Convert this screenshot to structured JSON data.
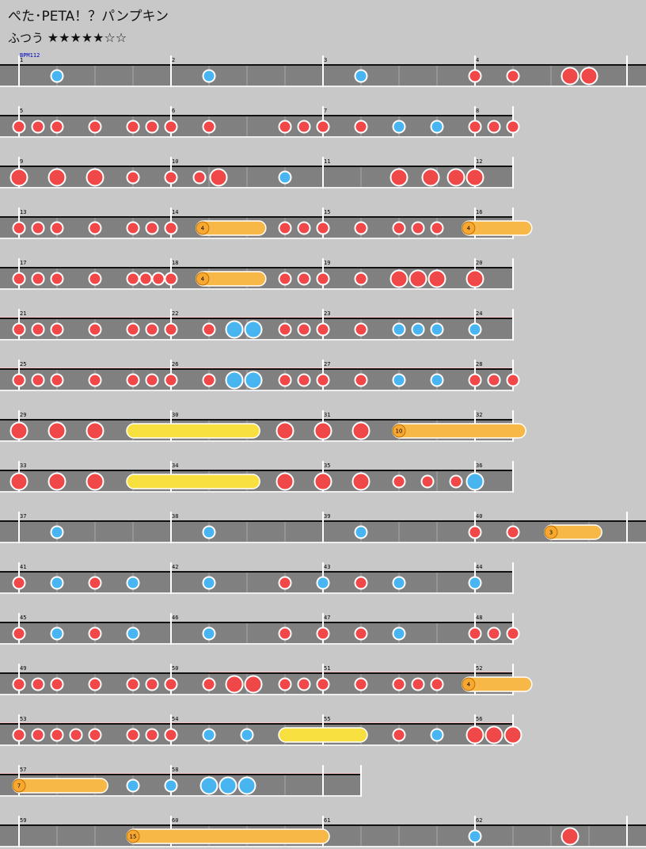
{
  "song": {
    "title": "ぺた･PETA！？パンプキン",
    "difficulty": "ふつう",
    "stars": "★★★★★☆☆"
  },
  "chart_data": {
    "type": "table",
    "bpm_label": "BPM112",
    "colors": {
      "don": "#f04848",
      "ka": "#48b4f0",
      "roll": "#f8b848",
      "balloon": "#f8e040",
      "gogo": "#ffc8c8",
      "lane": "#808080"
    },
    "rows": [
      {
        "measures": [
          1,
          2,
          3,
          4
        ],
        "width": 4,
        "gogo": [],
        "notes": [
          {
            "t": "k",
            "p": 1
          },
          {
            "t": "k",
            "p": 5
          },
          {
            "t": "k",
            "p": 9
          },
          {
            "t": "d",
            "p": 12
          },
          {
            "t": "d",
            "p": 13
          },
          {
            "t": "D",
            "p": 14.5
          },
          {
            "t": "D",
            "p": 15
          }
        ]
      },
      {
        "measures": [
          5,
          6,
          7,
          8
        ],
        "width": 3,
        "gogo": [],
        "notes": [
          {
            "t": "d",
            "p": 0
          },
          {
            "t": "d",
            "p": 0.5
          },
          {
            "t": "d",
            "p": 1
          },
          {
            "t": "d",
            "p": 2
          },
          {
            "t": "d",
            "p": 3
          },
          {
            "t": "d",
            "p": 3.5
          },
          {
            "t": "d",
            "p": 4
          },
          {
            "t": "d",
            "p": 5
          },
          {
            "t": "d",
            "p": 7
          },
          {
            "t": "d",
            "p": 7.5
          },
          {
            "t": "d",
            "p": 8
          },
          {
            "t": "d",
            "p": 9
          },
          {
            "t": "k",
            "p": 10
          },
          {
            "t": "k",
            "p": 11
          },
          {
            "t": "d",
            "p": 12
          },
          {
            "t": "d",
            "p": 12.5
          },
          {
            "t": "d",
            "p": 13
          }
        ]
      },
      {
        "measures": [
          9,
          10,
          11,
          12
        ],
        "width": 3,
        "gogo": [],
        "notes": [
          {
            "t": "D",
            "p": 0
          },
          {
            "t": "D",
            "p": 1
          },
          {
            "t": "D",
            "p": 2
          },
          {
            "t": "d",
            "p": 3
          },
          {
            "t": "d",
            "p": 4
          },
          {
            "t": "d",
            "p": 4.75
          },
          {
            "t": "D",
            "p": 5.25
          },
          {
            "t": "k",
            "p": 7
          },
          {
            "t": "D",
            "p": 10
          },
          {
            "t": "D",
            "p": 10.833
          },
          {
            "t": "D",
            "p": 11.5
          },
          {
            "t": "D",
            "p": 12
          }
        ]
      },
      {
        "measures": [
          13,
          14,
          15,
          16
        ],
        "width": 3,
        "gogo": [],
        "notes": [
          {
            "t": "d",
            "p": 0
          },
          {
            "t": "d",
            "p": 0.5
          },
          {
            "t": "d",
            "p": 1
          },
          {
            "t": "d",
            "p": 2
          },
          {
            "t": "d",
            "p": 3
          },
          {
            "t": "d",
            "p": 3.5
          },
          {
            "t": "d",
            "p": 4
          },
          {
            "t": "r",
            "p": 4.83,
            "e": 6.33,
            "n": "4"
          },
          {
            "t": "d",
            "p": 7
          },
          {
            "t": "d",
            "p": 7.5
          },
          {
            "t": "d",
            "p": 8
          },
          {
            "t": "d",
            "p": 9
          },
          {
            "t": "d",
            "p": 10
          },
          {
            "t": "d",
            "p": 10.5
          },
          {
            "t": "d",
            "p": 11
          },
          {
            "t": "r",
            "p": 11.83,
            "e": 13.33,
            "n": "4"
          }
        ]
      },
      {
        "measures": [
          17,
          18,
          19,
          20
        ],
        "width": 3,
        "gogo": [],
        "notes": [
          {
            "t": "d",
            "p": 0
          },
          {
            "t": "d",
            "p": 0.5
          },
          {
            "t": "d",
            "p": 1
          },
          {
            "t": "d",
            "p": 2
          },
          {
            "t": "d",
            "p": 3
          },
          {
            "t": "d",
            "p": 3.333
          },
          {
            "t": "d",
            "p": 3.667
          },
          {
            "t": "d",
            "p": 4
          },
          {
            "t": "r",
            "p": 4.83,
            "e": 6.33,
            "n": "4"
          },
          {
            "t": "d",
            "p": 7
          },
          {
            "t": "d",
            "p": 7.5
          },
          {
            "t": "d",
            "p": 8
          },
          {
            "t": "d",
            "p": 9
          },
          {
            "t": "D",
            "p": 10
          },
          {
            "t": "D",
            "p": 10.5
          },
          {
            "t": "D",
            "p": 11
          },
          {
            "t": "D",
            "p": 12
          }
        ]
      },
      {
        "measures": [
          21,
          22,
          23,
          24
        ],
        "width": 3,
        "gogo": [
          [
            0,
            3
          ]
        ],
        "notes": [
          {
            "t": "d",
            "p": 0
          },
          {
            "t": "d",
            "p": 0.5
          },
          {
            "t": "d",
            "p": 1
          },
          {
            "t": "d",
            "p": 2
          },
          {
            "t": "d",
            "p": 3
          },
          {
            "t": "d",
            "p": 3.5
          },
          {
            "t": "d",
            "p": 4
          },
          {
            "t": "d",
            "p": 5
          },
          {
            "t": "K",
            "p": 5.667
          },
          {
            "t": "K",
            "p": 6.167
          },
          {
            "t": "d",
            "p": 7
          },
          {
            "t": "d",
            "p": 7.5
          },
          {
            "t": "d",
            "p": 8
          },
          {
            "t": "d",
            "p": 9
          },
          {
            "t": "k",
            "p": 10
          },
          {
            "t": "k",
            "p": 10.5
          },
          {
            "t": "k",
            "p": 11
          },
          {
            "t": "k",
            "p": 12
          }
        ]
      },
      {
        "measures": [
          25,
          26,
          27,
          28
        ],
        "width": 3,
        "gogo": [
          [
            0,
            3
          ]
        ],
        "notes": [
          {
            "t": "d",
            "p": 0
          },
          {
            "t": "d",
            "p": 0.5
          },
          {
            "t": "d",
            "p": 1
          },
          {
            "t": "d",
            "p": 2
          },
          {
            "t": "d",
            "p": 3
          },
          {
            "t": "d",
            "p": 3.5
          },
          {
            "t": "d",
            "p": 4
          },
          {
            "t": "d",
            "p": 5
          },
          {
            "t": "K",
            "p": 5.667
          },
          {
            "t": "K",
            "p": 6.167
          },
          {
            "t": "d",
            "p": 7
          },
          {
            "t": "d",
            "p": 7.5
          },
          {
            "t": "d",
            "p": 8
          },
          {
            "t": "d",
            "p": 9
          },
          {
            "t": "k",
            "p": 10
          },
          {
            "t": "k",
            "p": 11
          },
          {
            "t": "d",
            "p": 12
          },
          {
            "t": "d",
            "p": 12.5
          },
          {
            "t": "d",
            "p": 13
          }
        ]
      },
      {
        "measures": [
          29,
          30,
          31,
          32
        ],
        "width": 3,
        "gogo": [],
        "notes": [
          {
            "t": "D",
            "p": 0
          },
          {
            "t": "D",
            "p": 1
          },
          {
            "t": "D",
            "p": 2
          },
          {
            "t": "b",
            "p": 3,
            "e": 6.17
          },
          {
            "t": "D",
            "p": 7
          },
          {
            "t": "D",
            "p": 8
          },
          {
            "t": "D",
            "p": 9
          },
          {
            "t": "r",
            "p": 10,
            "e": 13.17,
            "n": "10"
          }
        ]
      },
      {
        "measures": [
          33,
          34,
          35,
          36
        ],
        "width": 3,
        "gogo": [],
        "notes": [
          {
            "t": "D",
            "p": 0
          },
          {
            "t": "D",
            "p": 1
          },
          {
            "t": "D",
            "p": 2
          },
          {
            "t": "b",
            "p": 3,
            "e": 6.17
          },
          {
            "t": "D",
            "p": 7
          },
          {
            "t": "D",
            "p": 8
          },
          {
            "t": "D",
            "p": 9
          },
          {
            "t": "d",
            "p": 10
          },
          {
            "t": "d",
            "p": 10.75
          },
          {
            "t": "d",
            "p": 11.5
          },
          {
            "t": "K",
            "p": 12
          }
        ]
      },
      {
        "measures": [
          37,
          38,
          39,
          40
        ],
        "width": 4,
        "gogo": [],
        "notes": [
          {
            "t": "k",
            "p": 1
          },
          {
            "t": "k",
            "p": 5
          },
          {
            "t": "k",
            "p": 9
          },
          {
            "t": "d",
            "p": 12
          },
          {
            "t": "d",
            "p": 13
          },
          {
            "t": "r",
            "p": 14,
            "e": 15.17,
            "n": "3"
          }
        ]
      },
      {
        "measures": [
          41,
          42,
          43,
          44
        ],
        "width": 3,
        "gogo": [],
        "notes": [
          {
            "t": "d",
            "p": 0
          },
          {
            "t": "k",
            "p": 1
          },
          {
            "t": "d",
            "p": 2
          },
          {
            "t": "k",
            "p": 3
          },
          {
            "t": "k",
            "p": 5
          },
          {
            "t": "d",
            "p": 7
          },
          {
            "t": "k",
            "p": 8
          },
          {
            "t": "d",
            "p": 9
          },
          {
            "t": "k",
            "p": 10
          },
          {
            "t": "k",
            "p": 12
          }
        ]
      },
      {
        "measures": [
          45,
          46,
          47,
          48
        ],
        "width": 3,
        "gogo": [],
        "notes": [
          {
            "t": "d",
            "p": 0
          },
          {
            "t": "k",
            "p": 1
          },
          {
            "t": "d",
            "p": 2
          },
          {
            "t": "k",
            "p": 3
          },
          {
            "t": "k",
            "p": 5
          },
          {
            "t": "d",
            "p": 7
          },
          {
            "t": "d",
            "p": 8
          },
          {
            "t": "d",
            "p": 9
          },
          {
            "t": "k",
            "p": 10
          },
          {
            "t": "d",
            "p": 12
          },
          {
            "t": "d",
            "p": 12.5
          },
          {
            "t": "d",
            "p": 13
          }
        ]
      },
      {
        "measures": [
          49,
          50,
          51,
          52
        ],
        "width": 3,
        "gogo": [
          [
            1.25,
            3
          ]
        ],
        "notes": [
          {
            "t": "d",
            "p": 0
          },
          {
            "t": "d",
            "p": 0.5
          },
          {
            "t": "d",
            "p": 1
          },
          {
            "t": "d",
            "p": 2
          },
          {
            "t": "d",
            "p": 3
          },
          {
            "t": "d",
            "p": 3.5
          },
          {
            "t": "d",
            "p": 4
          },
          {
            "t": "d",
            "p": 5
          },
          {
            "t": "D",
            "p": 5.667
          },
          {
            "t": "D",
            "p": 6.167
          },
          {
            "t": "d",
            "p": 7
          },
          {
            "t": "d",
            "p": 7.5
          },
          {
            "t": "d",
            "p": 8
          },
          {
            "t": "d",
            "p": 9
          },
          {
            "t": "d",
            "p": 10
          },
          {
            "t": "d",
            "p": 10.5
          },
          {
            "t": "d",
            "p": 11
          },
          {
            "t": "r",
            "p": 11.83,
            "e": 13.33,
            "n": "4"
          }
        ]
      },
      {
        "measures": [
          53,
          54,
          55,
          56
        ],
        "width": 3,
        "gogo": [
          [
            0,
            3
          ]
        ],
        "notes": [
          {
            "t": "d",
            "p": 0
          },
          {
            "t": "d",
            "p": 0.5
          },
          {
            "t": "d",
            "p": 1
          },
          {
            "t": "d",
            "p": 1.5
          },
          {
            "t": "d",
            "p": 2
          },
          {
            "t": "d",
            "p": 3
          },
          {
            "t": "d",
            "p": 3.5
          },
          {
            "t": "d",
            "p": 4
          },
          {
            "t": "k",
            "p": 5
          },
          {
            "t": "k",
            "p": 6
          },
          {
            "t": "b",
            "p": 7,
            "e": 9
          },
          {
            "t": "d",
            "p": 10
          },
          {
            "t": "k",
            "p": 11
          },
          {
            "t": "D",
            "p": 12
          },
          {
            "t": "D",
            "p": 12.5
          },
          {
            "t": "D",
            "p": 13
          }
        ]
      },
      {
        "measures": [
          57,
          58
        ],
        "width": 2,
        "gogo": [
          [
            0,
            2
          ]
        ],
        "notes": [
          {
            "t": "r",
            "p": 0,
            "e": 2.17,
            "n": "7"
          },
          {
            "t": "k",
            "p": 3
          },
          {
            "t": "k",
            "p": 4
          },
          {
            "t": "K",
            "p": 5
          },
          {
            "t": "K",
            "p": 5.5
          },
          {
            "t": "K",
            "p": 6
          }
        ]
      },
      {
        "measures": [
          59,
          60,
          61,
          62
        ],
        "width": 4,
        "gogo": [],
        "notes": [
          {
            "t": "r",
            "p": 3,
            "e": 8,
            "n": "15"
          },
          {
            "t": "k",
            "p": 12
          },
          {
            "t": "D",
            "p": 14.5
          }
        ]
      }
    ]
  }
}
